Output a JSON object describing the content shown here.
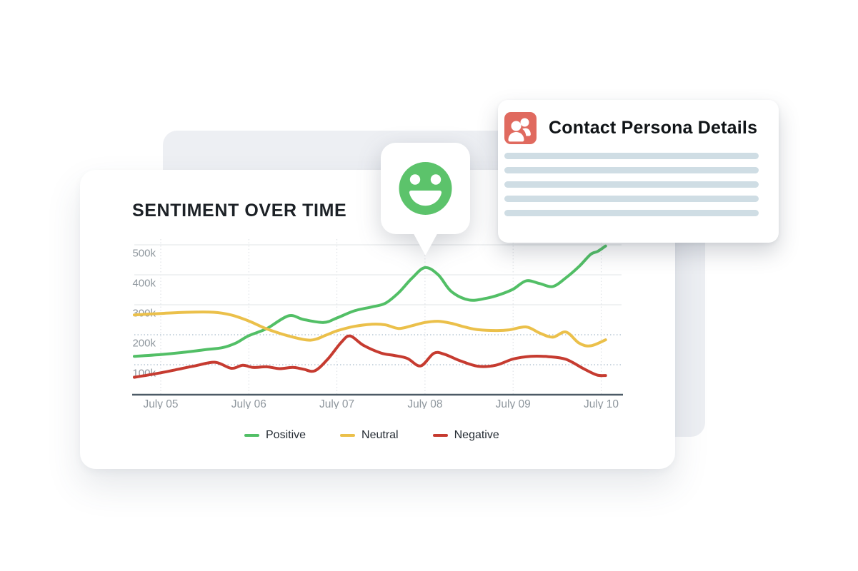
{
  "colors": {
    "canvas_bg": "#edeff3",
    "title": "#1c2126",
    "tick_label": "#8f979e",
    "axis": "#4c5a66",
    "grid_solid": "#e8eaec",
    "grid_dotted": "#87a0b7",
    "grid_vertical": "#d9dde2",
    "positive": "#52bf66",
    "neutral": "#ebc04a",
    "negative": "#c63b30",
    "smiley": "#5cc36b",
    "persona_icon": "#e06a5f",
    "placeholder_bar": "#cfdde4"
  },
  "chart_card": {
    "title": "SENTIMENT OVER TIME"
  },
  "chart_data": {
    "type": "line",
    "title": "SENTIMENT OVER TIME",
    "xlabel": "",
    "ylabel": "",
    "y_unit": "thousands",
    "ylim": [
      0,
      525
    ],
    "x_tick_labels": [
      "July 05",
      "July 06",
      "July 07",
      "July 08",
      "July 09",
      "July 10"
    ],
    "y_tick_labels": [
      "500k",
      "400k",
      "300k",
      "200k",
      "100k"
    ],
    "y_gridlines_solid": [
      500,
      400,
      300
    ],
    "y_gridlines_dotted": [
      200,
      100
    ],
    "grid": true,
    "legend_position": "bottom",
    "series": [
      {
        "name": "Positive",
        "color": "#52bf66",
        "points": [
          [
            -0.3,
            128
          ],
          [
            0,
            134
          ],
          [
            0.25,
            141
          ],
          [
            0.5,
            150
          ],
          [
            0.7,
            157
          ],
          [
            0.85,
            172
          ],
          [
            1.0,
            197
          ],
          [
            1.2,
            220
          ],
          [
            1.45,
            263
          ],
          [
            1.62,
            251
          ],
          [
            1.85,
            241
          ],
          [
            2.0,
            256
          ],
          [
            2.2,
            280
          ],
          [
            2.4,
            293
          ],
          [
            2.55,
            305
          ],
          [
            2.7,
            340
          ],
          [
            2.85,
            388
          ],
          [
            3.0,
            424
          ],
          [
            3.15,
            400
          ],
          [
            3.3,
            344
          ],
          [
            3.5,
            316
          ],
          [
            3.7,
            322
          ],
          [
            3.85,
            334
          ],
          [
            4.0,
            352
          ],
          [
            4.15,
            380
          ],
          [
            4.3,
            371
          ],
          [
            4.45,
            361
          ],
          [
            4.6,
            390
          ],
          [
            4.75,
            428
          ],
          [
            4.88,
            468
          ],
          [
            4.96,
            478
          ],
          [
            5.05,
            496
          ]
        ]
      },
      {
        "name": "Neutral",
        "color": "#ebc04a",
        "points": [
          [
            -0.3,
            266
          ],
          [
            0,
            271
          ],
          [
            0.3,
            275
          ],
          [
            0.6,
            275
          ],
          [
            0.8,
            266
          ],
          [
            1.0,
            246
          ],
          [
            1.2,
            220
          ],
          [
            1.45,
            196
          ],
          [
            1.7,
            182
          ],
          [
            1.88,
            199
          ],
          [
            2.0,
            213
          ],
          [
            2.2,
            228
          ],
          [
            2.4,
            235
          ],
          [
            2.55,
            233
          ],
          [
            2.7,
            221
          ],
          [
            2.85,
            230
          ],
          [
            3.0,
            241
          ],
          [
            3.15,
            245
          ],
          [
            3.3,
            238
          ],
          [
            3.45,
            226
          ],
          [
            3.6,
            217
          ],
          [
            3.8,
            214
          ],
          [
            3.95,
            216
          ],
          [
            4.15,
            226
          ],
          [
            4.3,
            206
          ],
          [
            4.45,
            192
          ],
          [
            4.6,
            209
          ],
          [
            4.75,
            172
          ],
          [
            4.88,
            163
          ],
          [
            5.05,
            183
          ]
        ]
      },
      {
        "name": "Negative",
        "color": "#c63b30",
        "points": [
          [
            -0.3,
            58
          ],
          [
            0,
            73
          ],
          [
            0.2,
            85
          ],
          [
            0.4,
            97
          ],
          [
            0.62,
            108
          ],
          [
            0.8,
            88
          ],
          [
            0.93,
            98
          ],
          [
            1.05,
            91
          ],
          [
            1.2,
            93
          ],
          [
            1.35,
            87
          ],
          [
            1.5,
            91
          ],
          [
            1.62,
            85
          ],
          [
            1.75,
            80
          ],
          [
            1.9,
            120
          ],
          [
            2.05,
            175
          ],
          [
            2.15,
            196
          ],
          [
            2.3,
            165
          ],
          [
            2.5,
            139
          ],
          [
            2.65,
            131
          ],
          [
            2.8,
            121
          ],
          [
            2.95,
            96
          ],
          [
            3.1,
            138
          ],
          [
            3.22,
            135
          ],
          [
            3.4,
            113
          ],
          [
            3.6,
            95
          ],
          [
            3.8,
            98
          ],
          [
            4.0,
            119
          ],
          [
            4.2,
            128
          ],
          [
            4.4,
            127
          ],
          [
            4.6,
            118
          ],
          [
            4.8,
            87
          ],
          [
            4.95,
            66
          ],
          [
            5.05,
            64
          ]
        ]
      }
    ]
  },
  "contact_card": {
    "title": "Contact Persona Details",
    "icon": "people-icon",
    "placeholder_line_count": 5
  },
  "tooltip": {
    "icon": "positive-smiley"
  }
}
